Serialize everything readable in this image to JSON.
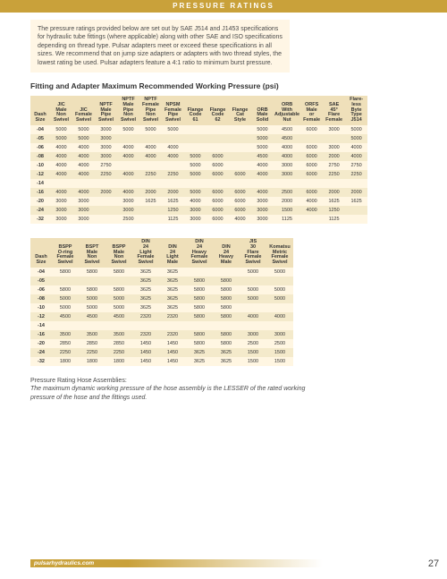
{
  "header": {
    "title": "PRESSURE RATINGS"
  },
  "intro": {
    "text": "The pressure ratings provided below are set out by SAE J514 and J1453 specifications for hydraulic tube fittings (where applicable) along with other SAE and ISO specifications depending on thread type. Pulsar adapters meet or exceed these specifications in all sizes. We recommend that on jump size adapters or adapters with two thread styles, the lowest rating be used. Pulsar adapters feature a 4:1 ratio to minimum burst pressure."
  },
  "section_title": "Fitting and Adapter Maximum Recommended Working Pressure (psi)",
  "table1": {
    "columns": [
      "Dash Size",
      "JIC Male Non Swivel",
      "JIC Female Swivel",
      "NPTF Male Pipe Swivel",
      "NPTF Male Pipe Non Swivel",
      "NPTF Female Pipe Non Swivel",
      "NPSM Female Pipe Swivel",
      "Flange Code 61",
      "Flange Code 62",
      "Flange Cat Style",
      "ORB Male Solid",
      "ORB With Adjustable Nut",
      "ORFS Male or Female",
      "SAE 45° Flare Female",
      "Flare-less Byte Type J514"
    ],
    "rows": [
      [
        "-04",
        "5000",
        "5000",
        "3000",
        "5000",
        "5000",
        "5000",
        "",
        "",
        "",
        "5000",
        "4500",
        "6000",
        "3000",
        "5000"
      ],
      [
        "-05",
        "5000",
        "5000",
        "3000",
        "",
        "",
        "",
        "",
        "",
        "",
        "5000",
        "4500",
        "",
        "",
        "5000"
      ],
      [
        "-06",
        "4000",
        "4000",
        "3000",
        "4000",
        "4000",
        "4000",
        "",
        "",
        "",
        "5000",
        "4000",
        "6000",
        "3000",
        "4000"
      ],
      [
        "-08",
        "4000",
        "4000",
        "3000",
        "4000",
        "4000",
        "4000",
        "5000",
        "6000",
        "",
        "4500",
        "4000",
        "6000",
        "2000",
        "4000"
      ],
      [
        "-10",
        "4000",
        "4000",
        "2750",
        "",
        "",
        "",
        "5000",
        "6000",
        "",
        "4000",
        "3000",
        "6000",
        "2750",
        "2750"
      ],
      [
        "-12",
        "4000",
        "4000",
        "2250",
        "4000",
        "2250",
        "2250",
        "5000",
        "6000",
        "6000",
        "4000",
        "3000",
        "6000",
        "2250",
        "2250"
      ],
      [
        "-14",
        "",
        "",
        "",
        "",
        "",
        "",
        "",
        "",
        "",
        "",
        "",
        "",
        "",
        ""
      ],
      [
        "-16",
        "4000",
        "4000",
        "2000",
        "4000",
        "2000",
        "2000",
        "5000",
        "6000",
        "6000",
        "4000",
        "2500",
        "6000",
        "2000",
        "2000"
      ],
      [
        "-20",
        "3000",
        "3000",
        "",
        "3000",
        "1625",
        "1625",
        "4000",
        "6000",
        "6000",
        "3000",
        "2000",
        "4000",
        "1625",
        "1625"
      ],
      [
        "-24",
        "3000",
        "3000",
        "",
        "3000",
        "",
        "1250",
        "3000",
        "6000",
        "6000",
        "3000",
        "1500",
        "4000",
        "1250",
        ""
      ],
      [
        "-32",
        "3000",
        "3000",
        "",
        "2500",
        "",
        "1125",
        "3000",
        "6000",
        "4000",
        "3000",
        "1125",
        "",
        "1125",
        ""
      ]
    ]
  },
  "table2": {
    "columns": [
      "Dash Size",
      "BSPP O-ring Female Swivel",
      "BSPT Male Non Swivel",
      "BSPP Male Non Swivel",
      "DIN 24 Light Female Swivel",
      "DIN 24 Light Male",
      "DIN 24 Heavy Female Swivel",
      "DIN 24 Heavy Male",
      "JIS 30 Flare Female Swivel",
      "Komatsu Metric Female Swivel"
    ],
    "rows": [
      [
        "-04",
        "5800",
        "5800",
        "5800",
        "3625",
        "3625",
        "",
        "",
        "5000",
        "5000"
      ],
      [
        "-05",
        "",
        "",
        "",
        "3625",
        "3625",
        "5800",
        "5800",
        "",
        ""
      ],
      [
        "-06",
        "5800",
        "5800",
        "5800",
        "3625",
        "3625",
        "5800",
        "5800",
        "5000",
        "5000"
      ],
      [
        "-08",
        "5000",
        "5000",
        "5000",
        "3625",
        "3625",
        "5800",
        "5800",
        "5000",
        "5000"
      ],
      [
        "-10",
        "5000",
        "5000",
        "5000",
        "3625",
        "3625",
        "5800",
        "5800",
        "",
        ""
      ],
      [
        "-12",
        "4500",
        "4500",
        "4500",
        "2320",
        "2320",
        "5800",
        "5800",
        "4000",
        "4000"
      ],
      [
        "-14",
        "",
        "",
        "",
        "",
        "",
        "",
        "",
        "",
        ""
      ],
      [
        "-16",
        "3500",
        "3500",
        "3500",
        "2320",
        "2320",
        "5800",
        "5800",
        "3000",
        "3000"
      ],
      [
        "-20",
        "2850",
        "2850",
        "2850",
        "1450",
        "1450",
        "5800",
        "5800",
        "2500",
        "2500"
      ],
      [
        "-24",
        "2250",
        "2250",
        "2250",
        "1450",
        "1450",
        "3625",
        "3625",
        "1500",
        "1500"
      ],
      [
        "-32",
        "1800",
        "1800",
        "1800",
        "1450",
        "1450",
        "3625",
        "3625",
        "1500",
        "1500"
      ]
    ]
  },
  "note": {
    "title": "Pressure Rating Hose Assemblies:",
    "body": "The maximum dynamic working pressure of the hose assembly is the LESSER of the rated working pressure of the hose and the fittings used."
  },
  "footer": {
    "url": "pulsarhydraulics.com",
    "page": "27"
  },
  "colors": {
    "brand": "#c9a13a",
    "band_a": "#fff6e2",
    "band_b": "#f4eacb",
    "header_cell": "#efe0ba",
    "intro_bg": "#fff6e5"
  }
}
